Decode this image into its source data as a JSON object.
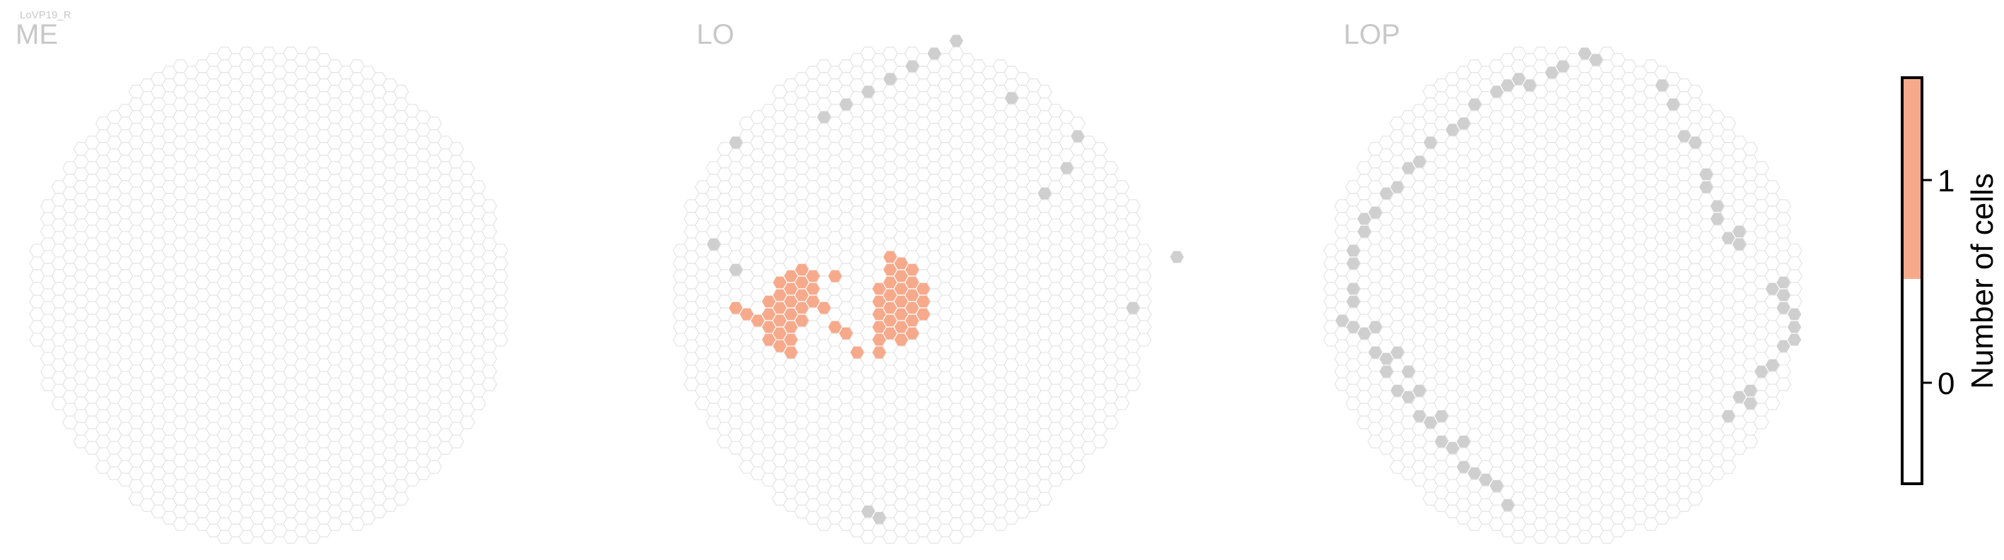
{
  "cell_type": "LoVP19_R",
  "chart_data": {
    "type": "heatmap",
    "regions": [
      {
        "name": "ME",
        "colored_columns": [],
        "gray_columns": []
      },
      {
        "name": "LO",
        "colored_columns": [
          [
            -16,
            1
          ],
          [
            -15,
            1
          ],
          [
            -14,
            2
          ],
          [
            -13,
            0
          ],
          [
            -13,
            1
          ],
          [
            -13,
            2
          ],
          [
            -13,
            3
          ],
          [
            -12,
            -1
          ],
          [
            -12,
            0
          ],
          [
            -12,
            1
          ],
          [
            -12,
            2
          ],
          [
            -12,
            3
          ],
          [
            -12,
            4
          ],
          [
            -11,
            -2
          ],
          [
            -11,
            -1
          ],
          [
            -11,
            0
          ],
          [
            -11,
            1
          ],
          [
            -11,
            2
          ],
          [
            -11,
            3
          ],
          [
            -11,
            4
          ],
          [
            -10,
            -2
          ],
          [
            -10,
            -1
          ],
          [
            -10,
            0
          ],
          [
            -10,
            1
          ],
          [
            -10,
            2
          ],
          [
            -9,
            -2
          ],
          [
            -9,
            -1
          ],
          [
            -9,
            0
          ],
          [
            -8,
            1
          ],
          [
            -7,
            2
          ],
          [
            -7,
            -2
          ],
          [
            -6,
            3
          ],
          [
            -5,
            4
          ],
          [
            -3,
            -1
          ],
          [
            -3,
            0
          ],
          [
            -3,
            1
          ],
          [
            -3,
            2
          ],
          [
            -3,
            3
          ],
          [
            -3,
            4
          ],
          [
            -2,
            -3
          ],
          [
            -2,
            -2
          ],
          [
            -2,
            -1
          ],
          [
            -2,
            0
          ],
          [
            -2,
            1
          ],
          [
            -2,
            2
          ],
          [
            -2,
            3
          ],
          [
            -1,
            -3
          ],
          [
            -1,
            -2
          ],
          [
            -1,
            -1
          ],
          [
            -1,
            0
          ],
          [
            -1,
            1
          ],
          [
            -1,
            2
          ],
          [
            -1,
            3
          ],
          [
            0,
            -2
          ],
          [
            0,
            -1
          ],
          [
            0,
            0
          ],
          [
            0,
            1
          ],
          [
            0,
            2
          ],
          [
            0,
            3
          ],
          [
            1,
            -1
          ],
          [
            1,
            0
          ],
          [
            1,
            1
          ]
        ],
        "gray_columns": [
          [
            20,
            1
          ],
          [
            24,
            -3
          ],
          [
            -4,
            17
          ],
          [
            -3,
            17
          ],
          [
            -16,
            -2
          ],
          [
            -18,
            -4
          ],
          [
            -16,
            -12
          ],
          [
            9,
            -16
          ],
          [
            15,
            -13
          ],
          [
            14,
            -10
          ],
          [
            12,
            -8
          ],
          [
            4,
            -20
          ],
          [
            2,
            -19
          ],
          [
            0,
            -18
          ],
          [
            -2,
            -17
          ],
          [
            -4,
            -16
          ],
          [
            -6,
            -15
          ],
          [
            -8,
            -14
          ]
        ]
      },
      {
        "name": "LOP",
        "colored_columns": [],
        "gray_columns": [
          [
            -20,
            2
          ],
          [
            -19,
            2
          ],
          [
            -18,
            3
          ],
          [
            -17,
            4
          ],
          [
            -16,
            5
          ],
          [
            -16,
            6
          ],
          [
            -15,
            7
          ],
          [
            -14,
            8
          ],
          [
            -13,
            9
          ],
          [
            -12,
            10
          ],
          [
            -11,
            11
          ],
          [
            -10,
            12
          ],
          [
            -9,
            13
          ],
          [
            -8,
            14
          ],
          [
            -7,
            14
          ],
          [
            -6,
            15
          ],
          [
            -5,
            16
          ],
          [
            -19,
            0
          ],
          [
            -19,
            -1
          ],
          [
            -19,
            -3
          ],
          [
            -19,
            -4
          ],
          [
            -18,
            -5
          ],
          [
            -18,
            -6
          ],
          [
            -17,
            -7
          ],
          [
            -16,
            -8
          ],
          [
            -15,
            -9
          ],
          [
            -14,
            -10
          ],
          [
            -13,
            -11
          ],
          [
            -12,
            -12
          ],
          [
            -10,
            -13
          ],
          [
            -9,
            -14
          ],
          [
            -8,
            -15
          ],
          [
            -6,
            -16
          ],
          [
            -5,
            -17
          ],
          [
            -4,
            -17
          ],
          [
            -3,
            -17
          ],
          [
            -1,
            -18
          ],
          [
            0,
            -18
          ],
          [
            2,
            -19
          ],
          [
            3,
            -19
          ],
          [
            9,
            -17
          ],
          [
            10,
            -15
          ],
          [
            11,
            -13
          ],
          [
            12,
            -12
          ],
          [
            13,
            -10
          ],
          [
            13,
            -9
          ],
          [
            14,
            -7
          ],
          [
            14,
            -6
          ],
          [
            15,
            -5
          ],
          [
            16,
            -5
          ],
          [
            16,
            -4
          ],
          [
            19,
            -1
          ],
          [
            20,
            -1
          ],
          [
            20,
            0
          ],
          [
            20,
            1
          ],
          [
            21,
            1
          ],
          [
            21,
            2
          ],
          [
            21,
            3
          ],
          [
            20,
            4
          ],
          [
            19,
            5
          ],
          [
            18,
            6
          ],
          [
            17,
            7
          ],
          [
            17,
            8
          ],
          [
            16,
            8
          ],
          [
            15,
            9
          ],
          [
            -17,
            2
          ],
          [
            -15,
            4
          ],
          [
            -14,
            6
          ],
          [
            -13,
            7
          ],
          [
            -11,
            9
          ],
          [
            -9,
            11
          ]
        ]
      }
    ],
    "colorbar": {
      "label": "Number of cells",
      "ticks": [
        "0",
        "1"
      ],
      "range": [
        0,
        1
      ],
      "colors": {
        "0": "#ffffff",
        "1": "#f7aa8b"
      }
    },
    "colors": {
      "empty_hex_stroke": "#e4e4e4",
      "empty_hex_fill": "#ffffff",
      "gray_hex": "#cfcfcf",
      "count_1": "#f7aa8b"
    }
  }
}
